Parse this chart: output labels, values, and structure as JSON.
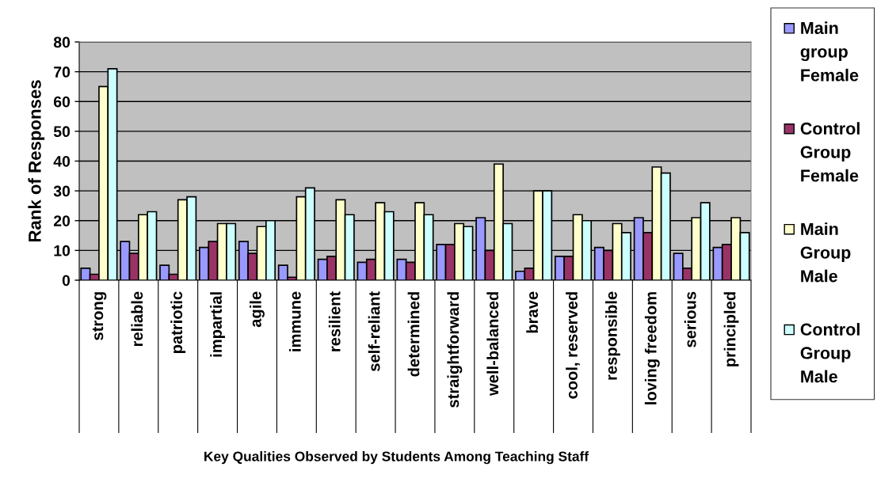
{
  "chart_data": {
    "type": "bar",
    "xlabel": "Key Qualities Observed by Students Among Teaching Staff",
    "ylabel": "Rank of Responses",
    "categories": [
      "strong",
      "reliable",
      "patriotic",
      "impartial",
      "agile",
      "immune",
      "resilient",
      "self-reliant",
      "determined",
      "straightforward",
      "well-balanced",
      "brave",
      "cool, reserved",
      "responsible",
      "loving freedom",
      "serious",
      "principled"
    ],
    "series": [
      {
        "name": "Main group Female",
        "color": "#9999ff",
        "values": [
          4,
          13,
          5,
          11,
          13,
          5,
          7,
          6,
          7,
          12,
          21,
          3,
          8,
          11,
          21,
          9,
          11
        ]
      },
      {
        "name": "Control Group Female",
        "color": "#993366",
        "values": [
          2,
          9,
          2,
          13,
          9,
          1,
          8,
          7,
          6,
          12,
          10,
          4,
          8,
          10,
          16,
          4,
          12
        ]
      },
      {
        "name": "Main Group Male",
        "color": "#ffffcc",
        "values": [
          65,
          22,
          27,
          19,
          18,
          28,
          27,
          26,
          26,
          19,
          39,
          30,
          22,
          19,
          38,
          21,
          21
        ]
      },
      {
        "name": "Control Group Male",
        "color": "#ccffff",
        "values": [
          71,
          23,
          28,
          19,
          20,
          31,
          22,
          23,
          22,
          18,
          19,
          30,
          20,
          16,
          36,
          26,
          16
        ]
      }
    ],
    "ylim": [
      0,
      80
    ],
    "yticks": [
      0,
      10,
      20,
      30,
      40,
      50,
      60,
      70,
      80
    ],
    "grid": "y",
    "legend": "right"
  }
}
